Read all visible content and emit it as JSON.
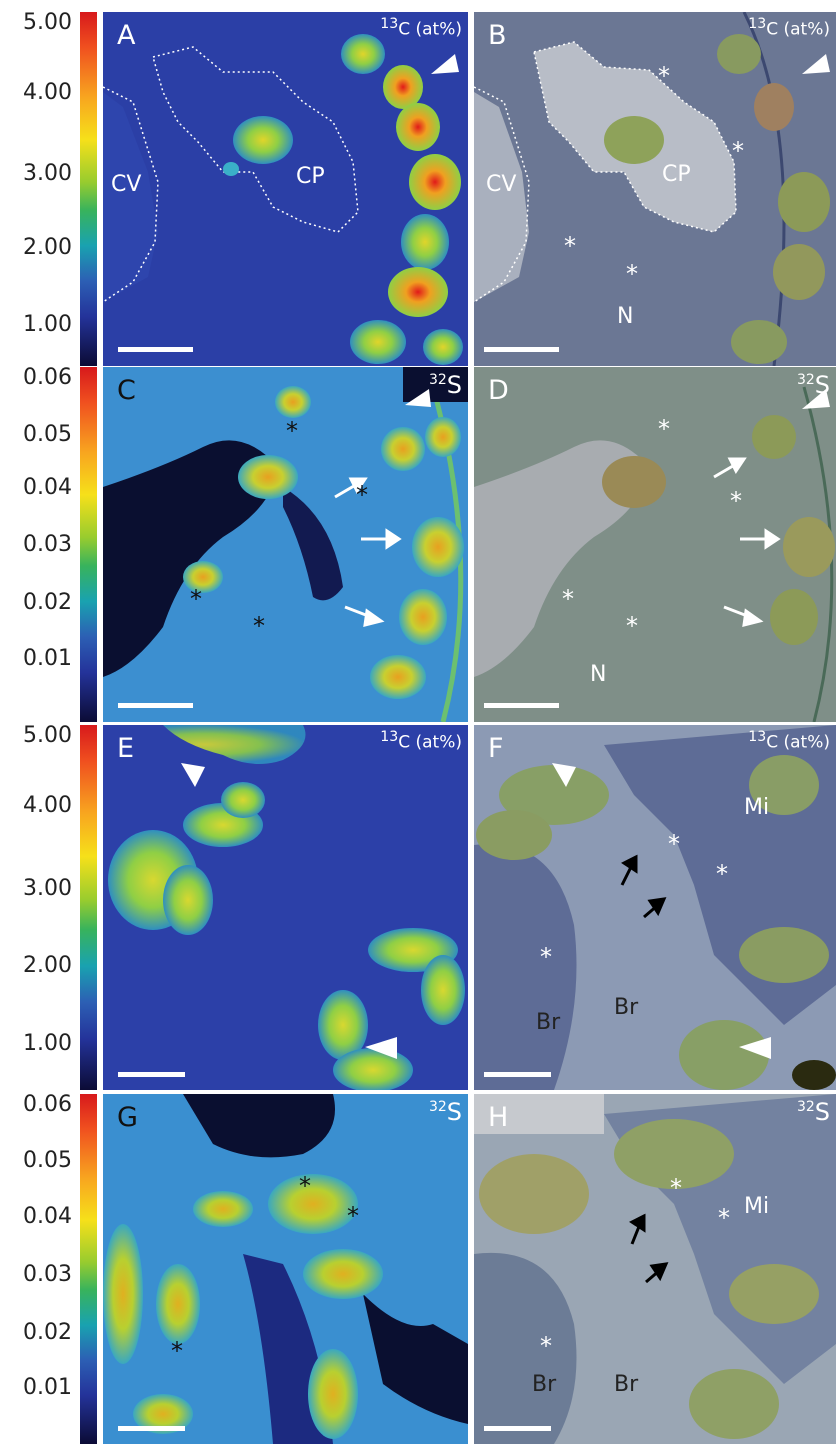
{
  "scales": {
    "c13": [
      "5.00",
      "4.00",
      "3.00",
      "2.00",
      "1.00"
    ],
    "s32": [
      "0.06",
      "0.05",
      "0.04",
      "0.03",
      "0.02",
      "0.01"
    ]
  },
  "labels": {
    "isotope_c": "13C (at%)",
    "isotope_s": "32S",
    "sup13": "13",
    "c_rest": "C (at%)",
    "sup32": "32",
    "s_rest": "S"
  },
  "panels": {
    "A": {
      "letter": "A",
      "cv": "CV",
      "cp": "CP"
    },
    "B": {
      "letter": "B",
      "cv": "CV",
      "cp": "CP",
      "n": "N"
    },
    "C": {
      "letter": "C"
    },
    "D": {
      "letter": "D",
      "n": "N"
    },
    "E": {
      "letter": "E"
    },
    "F": {
      "letter": "F",
      "mi": "Mi",
      "br1": "Br",
      "br2": "Br"
    },
    "G": {
      "letter": "G"
    },
    "H": {
      "letter": "H",
      "mi": "Mi",
      "br1": "Br",
      "br2": "Br"
    }
  },
  "asterisk": "*"
}
